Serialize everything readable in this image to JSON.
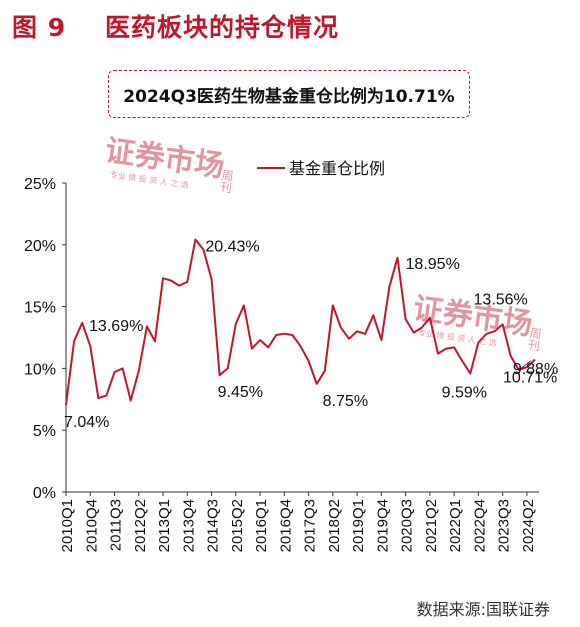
{
  "figure_label": "图 9",
  "figure_title": "医药板块的持仓情况",
  "note": "2024Q3医药生物基金重仓比例为10.71%",
  "source": "数据来源:国联证券",
  "watermark": {
    "text": "证券市场",
    "side": "周刊",
    "small": "专业 做 投 资 人 之 选"
  },
  "colors": {
    "accent": "#c0172b",
    "series": "#c0172b",
    "axis": "#333333"
  },
  "chart_data": {
    "type": "line",
    "title": "",
    "xlabel": "",
    "ylabel": "",
    "ylim": [
      0,
      25
    ],
    "yticks": [
      "0%",
      "5%",
      "10%",
      "15%",
      "20%",
      "25%"
    ],
    "grid": false,
    "legend_position": "top-center",
    "xticklabels": [
      "2010Q1",
      "2010Q4",
      "2011Q3",
      "2012Q2",
      "2013Q1",
      "2013Q4",
      "2014Q3",
      "2015Q2",
      "2016Q1",
      "2016Q4",
      "2017Q3",
      "2018Q2",
      "2019Q1",
      "2019Q4",
      "2020Q3",
      "2021Q2",
      "2022Q1",
      "2022Q4",
      "2023Q3",
      "2024Q2"
    ],
    "categories": [
      "2010Q1",
      "2010Q2",
      "2010Q3",
      "2010Q4",
      "2011Q1",
      "2011Q2",
      "2011Q3",
      "2011Q4",
      "2012Q1",
      "2012Q2",
      "2012Q3",
      "2012Q4",
      "2013Q1",
      "2013Q2",
      "2013Q3",
      "2013Q4",
      "2014Q1",
      "2014Q2",
      "2014Q3",
      "2014Q4",
      "2015Q1",
      "2015Q2",
      "2015Q3",
      "2015Q4",
      "2016Q1",
      "2016Q2",
      "2016Q3",
      "2016Q4",
      "2017Q1",
      "2017Q2",
      "2017Q3",
      "2017Q4",
      "2018Q1",
      "2018Q2",
      "2018Q3",
      "2018Q4",
      "2019Q1",
      "2019Q2",
      "2019Q3",
      "2019Q4",
      "2020Q1",
      "2020Q2",
      "2020Q3",
      "2020Q4",
      "2021Q1",
      "2021Q2",
      "2021Q3",
      "2021Q4",
      "2022Q1",
      "2022Q2",
      "2022Q3",
      "2022Q4",
      "2023Q1",
      "2023Q2",
      "2023Q3",
      "2023Q4",
      "2024Q1",
      "2024Q2",
      "2024Q3"
    ],
    "series": [
      {
        "name": "基金重仓比例",
        "values": [
          7.04,
          12.2,
          13.69,
          11.8,
          7.6,
          7.8,
          9.7,
          10.0,
          7.4,
          9.8,
          13.4,
          12.2,
          17.3,
          17.1,
          16.7,
          17.0,
          20.43,
          19.6,
          17.2,
          9.45,
          10.0,
          13.6,
          15.1,
          11.6,
          12.3,
          11.7,
          12.7,
          12.8,
          12.7,
          11.8,
          10.6,
          8.75,
          9.8,
          15.1,
          13.3,
          12.4,
          13.0,
          12.8,
          14.3,
          12.3,
          16.6,
          18.95,
          14.0,
          12.9,
          13.3,
          14.1,
          11.2,
          11.6,
          11.7,
          10.6,
          9.59,
          12.1,
          12.8,
          13.0,
          13.56,
          11.0,
          9.88,
          10.1,
          10.71
        ]
      }
    ],
    "annotations": [
      {
        "index": 0,
        "text": "7.04%"
      },
      {
        "index": 2,
        "text": "13.69%"
      },
      {
        "index": 16,
        "text": "20.43%"
      },
      {
        "index": 19,
        "text": "9.45%"
      },
      {
        "index": 31,
        "text": "8.75%"
      },
      {
        "index": 41,
        "text": "18.95%"
      },
      {
        "index": 50,
        "text": "9.59%"
      },
      {
        "index": 54,
        "text": "13.56%"
      },
      {
        "index": 56,
        "text": "9.88%"
      },
      {
        "index": 58,
        "text": "10.71%"
      }
    ]
  }
}
